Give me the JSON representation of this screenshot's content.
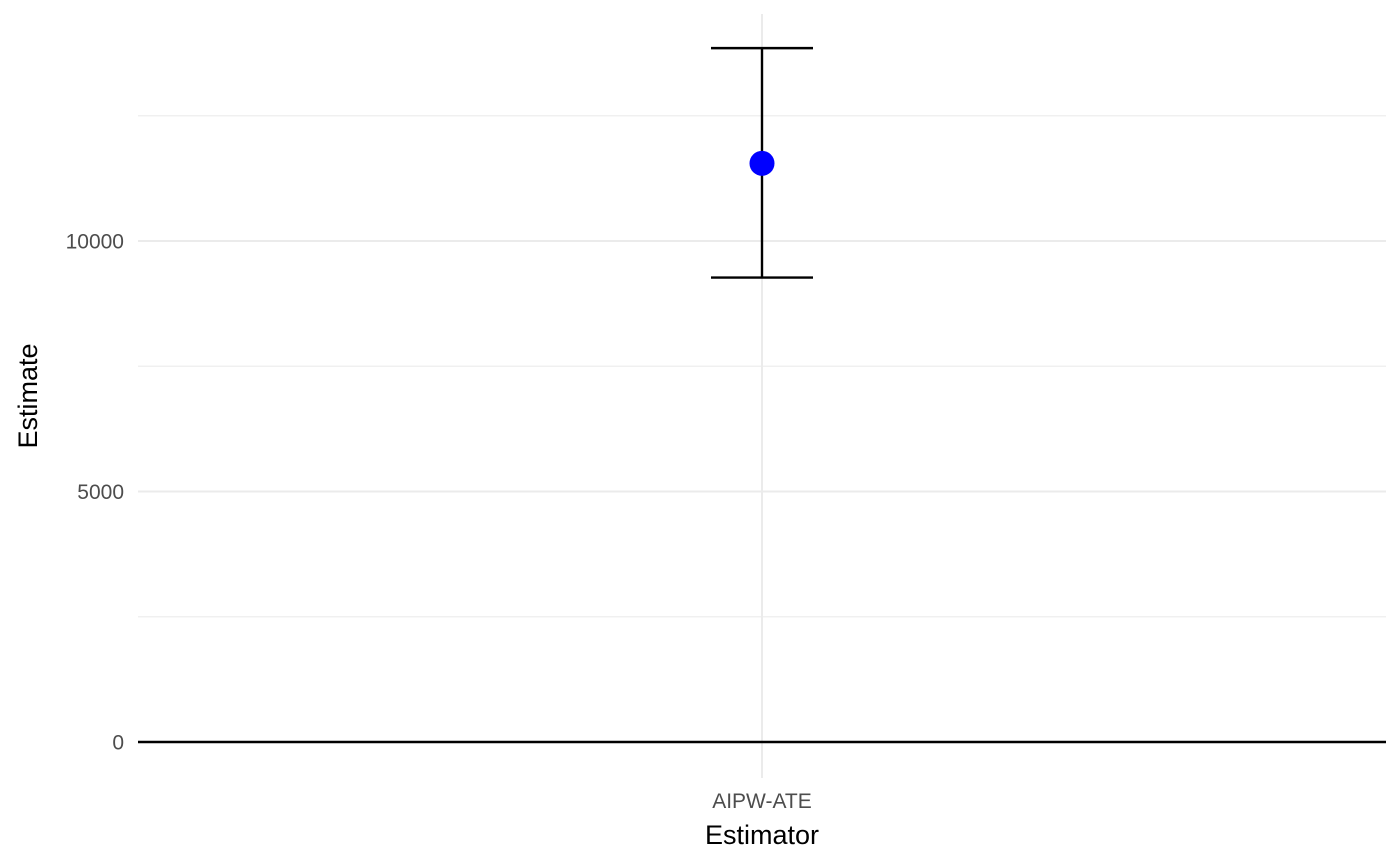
{
  "chart_data": {
    "type": "errorbar",
    "title": "",
    "xlabel": "Estimator",
    "ylabel": "Estimate",
    "categories": [
      "AIPW-ATE"
    ],
    "series": [
      {
        "values": [
          11550
        ],
        "lower": [
          9270
        ],
        "upper": [
          13850
        ]
      }
    ],
    "ylim": [
      0,
      14500
    ],
    "yticks": [
      0,
      5000,
      10000
    ],
    "yticklabels": [
      "0",
      "5000",
      "10000"
    ],
    "y_minor_ticks": [
      2500,
      7500,
      12500
    ],
    "reference_line_y": 0,
    "grid": true,
    "legend": "none",
    "colors": {
      "point": "#0000ff",
      "errorbar": "#000000",
      "reference_line": "#000000",
      "grid_major": "#ebebeb",
      "grid_minor": "#f0f0f0"
    }
  }
}
